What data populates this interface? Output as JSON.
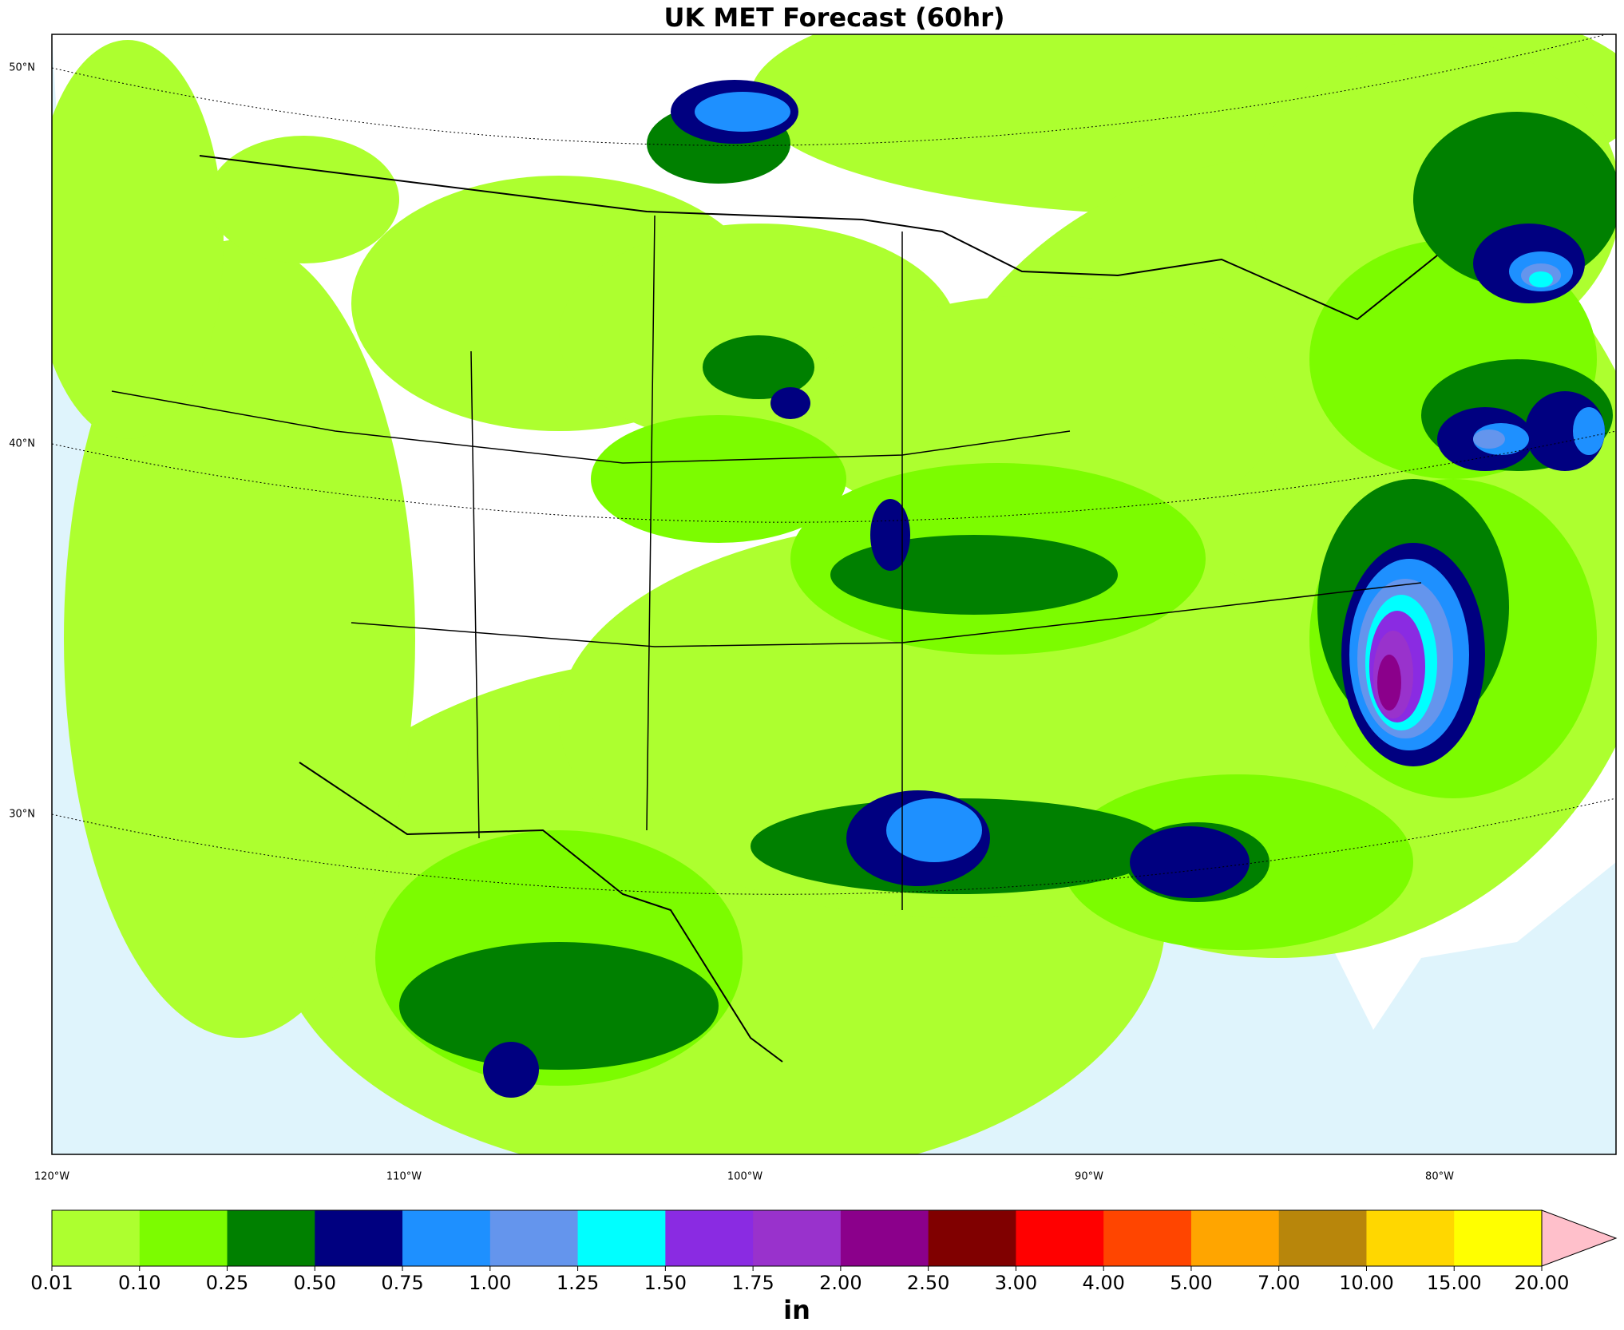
{
  "title": "UK MET Forecast (60hr)",
  "map": {
    "lat_labels": [
      "50°N",
      "40°N",
      "30°N"
    ],
    "lon_labels": [
      "120°W",
      "110°W",
      "100°W",
      "90°W",
      "80°W"
    ],
    "ocean_color": "#dff4fc",
    "land_color": "#ffffff"
  },
  "colorbar": {
    "label": "in",
    "ticks": [
      "0.01",
      "0.10",
      "0.25",
      "0.50",
      "0.75",
      "1.00",
      "1.25",
      "1.50",
      "1.75",
      "2.00",
      "2.50",
      "3.00",
      "4.00",
      "5.00",
      "7.00",
      "10.00",
      "15.00",
      "20.00"
    ],
    "colors": [
      "#adff2f",
      "#7cfc00",
      "#008000",
      "#000080",
      "#1e90ff",
      "#6495ed",
      "#00ffff",
      "#8a2be2",
      "#9932cc",
      "#8b008b",
      "#800000",
      "#ff0000",
      "#ff4500",
      "#ffa500",
      "#b8860b",
      "#ffd700",
      "#ffff00"
    ],
    "extend_color": "#ffc0cb"
  }
}
